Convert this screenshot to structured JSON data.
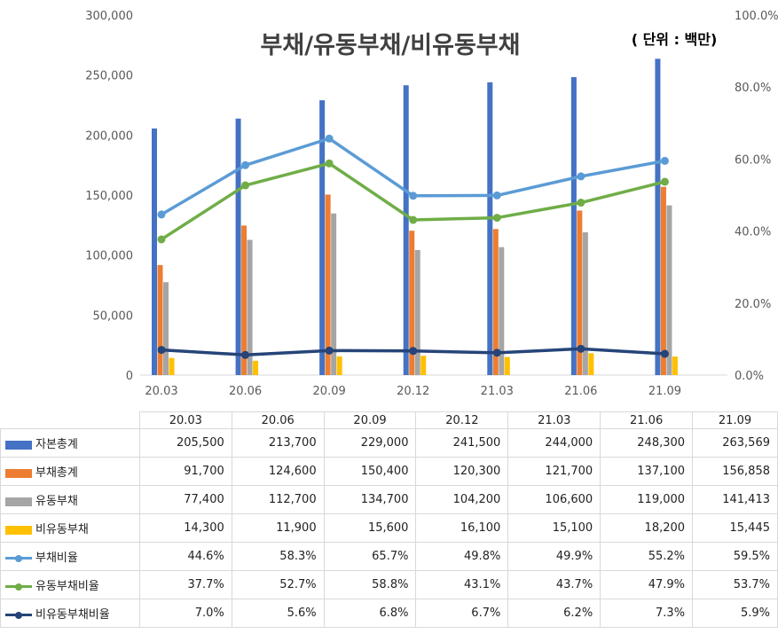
{
  "chart_data": {
    "type": "bar+line",
    "title": "부채/유동부채/비유동부채",
    "unit_note": "( 단위 : 백만)",
    "categories": [
      "20.03",
      "20.06",
      "20.09",
      "20.12",
      "21.03",
      "21.06",
      "21.09"
    ],
    "y_left": {
      "min": 0,
      "max": 300000,
      "ticks": [
        "0",
        "50,000",
        "100,000",
        "150,000",
        "200,000",
        "250,000",
        "300,000"
      ]
    },
    "y_right": {
      "min": 0,
      "max": 100,
      "ticks": [
        "0.0%",
        "20.0%",
        "40.0%",
        "60.0%",
        "80.0%",
        "100.0%"
      ]
    },
    "bar_series": [
      {
        "name": "자본총계",
        "color": "#4472c4",
        "values": [
          205500,
          213700,
          229000,
          241500,
          244000,
          248300,
          263569
        ],
        "display": [
          "205,500",
          "213,700",
          "229,000",
          "241,500",
          "244,000",
          "248,300",
          "263,569"
        ]
      },
      {
        "name": "부채총계",
        "color": "#ed7d31",
        "values": [
          91700,
          124600,
          150400,
          120300,
          121700,
          137100,
          156858
        ],
        "display": [
          "91,700",
          "124,600",
          "150,400",
          "120,300",
          "121,700",
          "137,100",
          "156,858"
        ]
      },
      {
        "name": "유동부채",
        "color": "#a5a5a5",
        "values": [
          77400,
          112700,
          134700,
          104200,
          106600,
          119000,
          141413
        ],
        "display": [
          "77,400",
          "112,700",
          "134,700",
          "104,200",
          "106,600",
          "119,000",
          "141,413"
        ]
      },
      {
        "name": "비유동부채",
        "color": "#ffc000",
        "values": [
          14300,
          11900,
          15600,
          16100,
          15100,
          18200,
          15445
        ],
        "display": [
          "14,300",
          "11,900",
          "15,600",
          "16,100",
          "15,100",
          "18,200",
          "15,445"
        ]
      }
    ],
    "line_series": [
      {
        "name": "부채비율",
        "color": "#5b9bd5",
        "values": [
          44.6,
          58.3,
          65.7,
          49.8,
          49.9,
          55.2,
          59.5
        ],
        "display": [
          "44.6%",
          "58.3%",
          "65.7%",
          "49.8%",
          "49.9%",
          "55.2%",
          "59.5%"
        ]
      },
      {
        "name": "유동부채비율",
        "color": "#70ad47",
        "values": [
          37.7,
          52.7,
          58.8,
          43.1,
          43.7,
          47.9,
          53.7
        ],
        "display": [
          "37.7%",
          "52.7%",
          "58.8%",
          "43.1%",
          "43.7%",
          "47.9%",
          "53.7%"
        ]
      },
      {
        "name": "비유동부채비율",
        "color": "#264478",
        "values": [
          7.0,
          5.6,
          6.8,
          6.7,
          6.2,
          7.3,
          5.9
        ],
        "display": [
          "7.0%",
          "5.6%",
          "6.8%",
          "6.7%",
          "6.2%",
          "7.3%",
          "5.9%"
        ]
      }
    ]
  }
}
